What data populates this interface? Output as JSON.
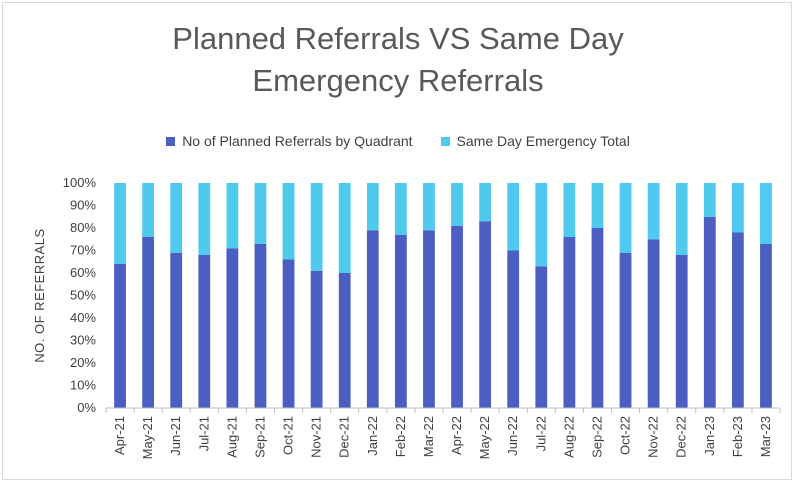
{
  "chart_data": {
    "type": "bar",
    "stacked": "percent",
    "title_lines": [
      "Planned Referrals VS Same Day",
      "Emergency Referrals"
    ],
    "ylabel": "NO. OF REFERRALS",
    "xlabel": "",
    "ylim": [
      0,
      100
    ],
    "yticks": [
      "0%",
      "10%",
      "20%",
      "30%",
      "40%",
      "50%",
      "60%",
      "70%",
      "80%",
      "90%",
      "100%"
    ],
    "legend_position": "top",
    "grid": false,
    "categories": [
      "Apr-21",
      "May-21",
      "Jun-21",
      "Jul-21",
      "Aug-21",
      "Sep-21",
      "Oct-21",
      "Nov-21",
      "Dec-21",
      "Jan-22",
      "Feb-22",
      "Mar-22",
      "Apr-22",
      "May-22",
      "Jun-22",
      "Jul-22",
      "Aug-22",
      "Sep-22",
      "Oct-22",
      "Nov-22",
      "Dec-22",
      "Jan-23",
      "Feb-23",
      "Mar-23"
    ],
    "series": [
      {
        "name": "No of Planned Referrals by Quadrant",
        "color": "#4a5fc1",
        "values": [
          64,
          76,
          69,
          68,
          71,
          73,
          66,
          61,
          60,
          79,
          77,
          79,
          81,
          83,
          70,
          63,
          76,
          80,
          69,
          75,
          68,
          85,
          78,
          73
        ]
      },
      {
        "name": "Same Day Emergency Total",
        "color": "#4fc9ec",
        "values": [
          36,
          24,
          31,
          32,
          29,
          27,
          34,
          39,
          40,
          21,
          23,
          21,
          19,
          17,
          30,
          37,
          24,
          20,
          31,
          25,
          32,
          15,
          22,
          27
        ]
      }
    ]
  }
}
